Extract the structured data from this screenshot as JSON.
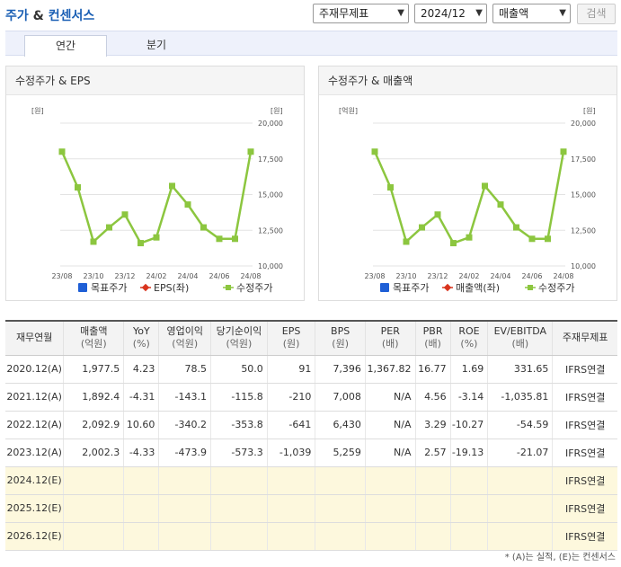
{
  "header": {
    "title_a": "주가",
    "title_amp": "&",
    "title_b": "컨센서스",
    "select_theme": "주재무제표",
    "select_period": "2024/12",
    "select_metric": "매출액",
    "search_label": "검색"
  },
  "tabs": [
    "연간",
    "분기"
  ],
  "charts": {
    "left_title": "수정주가 & EPS",
    "right_title": "수정주가 & 매출액",
    "left_left_unit": "[원]",
    "left_right_unit": "[원]",
    "right_left_unit": "[억원]",
    "right_right_unit": "[원]",
    "left_legend": [
      "목표주가",
      "EPS(좌)",
      "수정주가"
    ],
    "right_legend": [
      "목표주가",
      "매출액(좌)",
      "수정주가"
    ],
    "legend_colors": [
      "#1f5fd6",
      "#d9341e",
      "#8cc63f"
    ]
  },
  "chart_data": [
    {
      "type": "line",
      "title": "수정주가 & EPS",
      "x": [
        "23/08",
        "23/09",
        "23/10",
        "23/11",
        "23/12",
        "24/01",
        "24/02",
        "24/03",
        "24/04",
        "24/05",
        "24/06",
        "24/07",
        "24/08"
      ],
      "x_tick_labels": [
        "23/08",
        "23/10",
        "23/12",
        "24/02",
        "24/04",
        "24/06",
        "24/08"
      ],
      "y_right_ticks": [
        "20,000",
        "17,500",
        "15,000",
        "12,500",
        "10,000"
      ],
      "y_right_range": [
        10000,
        20000
      ],
      "series": [
        {
          "name": "수정주가",
          "axis": "right",
          "color": "#8cc63f",
          "values": [
            18000,
            15500,
            11700,
            12700,
            13600,
            11600,
            12000,
            15600,
            14300,
            12700,
            11900,
            11900,
            18000
          ]
        }
      ]
    },
    {
      "type": "line",
      "title": "수정주가 & 매출액",
      "x": [
        "23/08",
        "23/09",
        "23/10",
        "23/11",
        "23/12",
        "24/01",
        "24/02",
        "24/03",
        "24/04",
        "24/05",
        "24/06",
        "24/07",
        "24/08"
      ],
      "x_tick_labels": [
        "23/08",
        "23/10",
        "23/12",
        "24/02",
        "24/04",
        "24/06",
        "24/08"
      ],
      "y_right_ticks": [
        "20,000",
        "17,500",
        "15,000",
        "12,500",
        "10,000"
      ],
      "y_right_range": [
        10000,
        20000
      ],
      "series": [
        {
          "name": "수정주가",
          "axis": "right",
          "color": "#8cc63f",
          "values": [
            18000,
            15500,
            11700,
            12700,
            13600,
            11600,
            12000,
            15600,
            14300,
            12700,
            11900,
            11900,
            18000
          ]
        }
      ]
    }
  ],
  "table": {
    "headers": [
      {
        "main": "재무연월",
        "sub": ""
      },
      {
        "main": "매출액",
        "sub": "(억원)"
      },
      {
        "main": "YoY",
        "sub": "(%)"
      },
      {
        "main": "영업이익",
        "sub": "(억원)"
      },
      {
        "main": "당기순이익",
        "sub": "(억원)"
      },
      {
        "main": "EPS",
        "sub": "(원)"
      },
      {
        "main": "BPS",
        "sub": "(원)"
      },
      {
        "main": "PER",
        "sub": "(배)"
      },
      {
        "main": "PBR",
        "sub": "(배)"
      },
      {
        "main": "ROE",
        "sub": "(%)"
      },
      {
        "main": "EV/EBITDA",
        "sub": "(배)"
      },
      {
        "main": "주재무제표",
        "sub": ""
      }
    ],
    "rows": [
      [
        "2020.12(A)",
        "1,977.5",
        "4.23",
        "78.5",
        "50.0",
        "91",
        "7,396",
        "1,367.82",
        "16.77",
        "1.69",
        "331.65",
        "IFRS연결"
      ],
      [
        "2021.12(A)",
        "1,892.4",
        "-4.31",
        "-143.1",
        "-115.8",
        "-210",
        "7,008",
        "N/A",
        "4.56",
        "-3.14",
        "-1,035.81",
        "IFRS연결"
      ],
      [
        "2022.12(A)",
        "2,092.9",
        "10.60",
        "-340.2",
        "-353.8",
        "-641",
        "6,430",
        "N/A",
        "3.29",
        "-10.27",
        "-54.59",
        "IFRS연결"
      ],
      [
        "2023.12(A)",
        "2,002.3",
        "-4.33",
        "-473.9",
        "-573.3",
        "-1,039",
        "5,259",
        "N/A",
        "2.57",
        "-19.13",
        "-21.07",
        "IFRS연결"
      ],
      [
        "2024.12(E)",
        "",
        "",
        "",
        "",
        "",
        "",
        "",
        "",
        "",
        "",
        "IFRS연결"
      ],
      [
        "2025.12(E)",
        "",
        "",
        "",
        "",
        "",
        "",
        "",
        "",
        "",
        "",
        "IFRS연결"
      ],
      [
        "2026.12(E)",
        "",
        "",
        "",
        "",
        "",
        "",
        "",
        "",
        "",
        "",
        "IFRS연결"
      ]
    ]
  },
  "footnote": "* (A)는 실적, (E)는 컨센서스"
}
